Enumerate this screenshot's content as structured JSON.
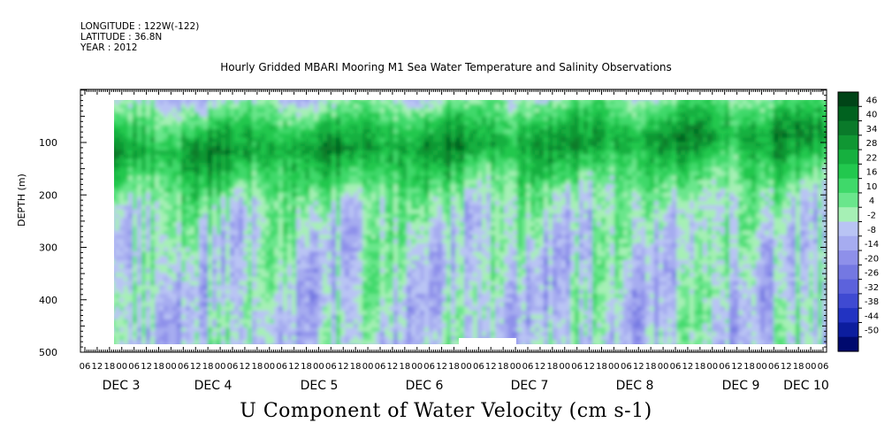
{
  "header": {
    "longitude": "LONGITUDE : 122W(-122)",
    "latitude": "LATITUDE : 36.8N",
    "year": "YEAR : 2012"
  },
  "chart_data": {
    "type": "heatmap",
    "title": "Hourly Gridded MBARI Mooring M1 Sea Water Temperature and Salinity Observations",
    "xlabel": "U Component of Water Velocity (cm s-1)",
    "ylabel": "DEPTH (m)",
    "ylim": [
      500,
      0
    ],
    "y_ticks": [
      100,
      200,
      300,
      400,
      500
    ],
    "x_hour_ticks": [
      "06",
      "12",
      "18",
      "00",
      "06",
      "12",
      "18",
      "00",
      "06",
      "12",
      "18",
      "00",
      "06",
      "12",
      "18",
      "00",
      "06",
      "12",
      "18",
      "00",
      "06",
      "12",
      "18",
      "00",
      "06",
      "12",
      "18",
      "00",
      "06",
      "12",
      "18",
      "00",
      "06",
      "12",
      "18",
      "00",
      "06",
      "12",
      "18",
      "00",
      "06",
      "12",
      "18",
      "00",
      "06",
      "12",
      "18",
      "00",
      "06",
      "12",
      "18",
      "00",
      "06",
      "12",
      "18",
      "00",
      "06",
      "12",
      "18",
      "00",
      "06"
    ],
    "x_date_labels": [
      "DEC 3",
      "DEC 4",
      "DEC 5",
      "DEC 6",
      "DEC 7",
      "DEC 8",
      "DEC 9",
      "DEC 10"
    ],
    "colorbar": {
      "labels": [
        "46",
        "40",
        "34",
        "28",
        "22",
        "16",
        "10",
        "4",
        "-2",
        "-8",
        "-14",
        "-20",
        "-26",
        "-32",
        "-38",
        "-44",
        "-50"
      ],
      "colors": [
        "#004417",
        "#00621f",
        "#0a7a2a",
        "#109733",
        "#16b03f",
        "#22c84e",
        "#3fd96a",
        "#6ae68c",
        "#a6f0b5",
        "#b9c4f4",
        "#a6acf0",
        "#8e90ea",
        "#7478e2",
        "#5c62dc",
        "#3f4ad2",
        "#2233c2",
        "#0c1d9e",
        "#00096e"
      ]
    },
    "depth_profile": [
      {
        "depth": 25,
        "u": -5
      },
      {
        "depth": 75,
        "u": 15
      },
      {
        "depth": 125,
        "u": 30
      },
      {
        "depth": 175,
        "u": 16
      },
      {
        "depth": 225,
        "u": 4
      },
      {
        "depth": 275,
        "u": 0
      },
      {
        "depth": 325,
        "u": -2
      },
      {
        "depth": 375,
        "u": -3
      },
      {
        "depth": 425,
        "u": -4
      },
      {
        "depth": 475,
        "u": -4
      }
    ]
  }
}
